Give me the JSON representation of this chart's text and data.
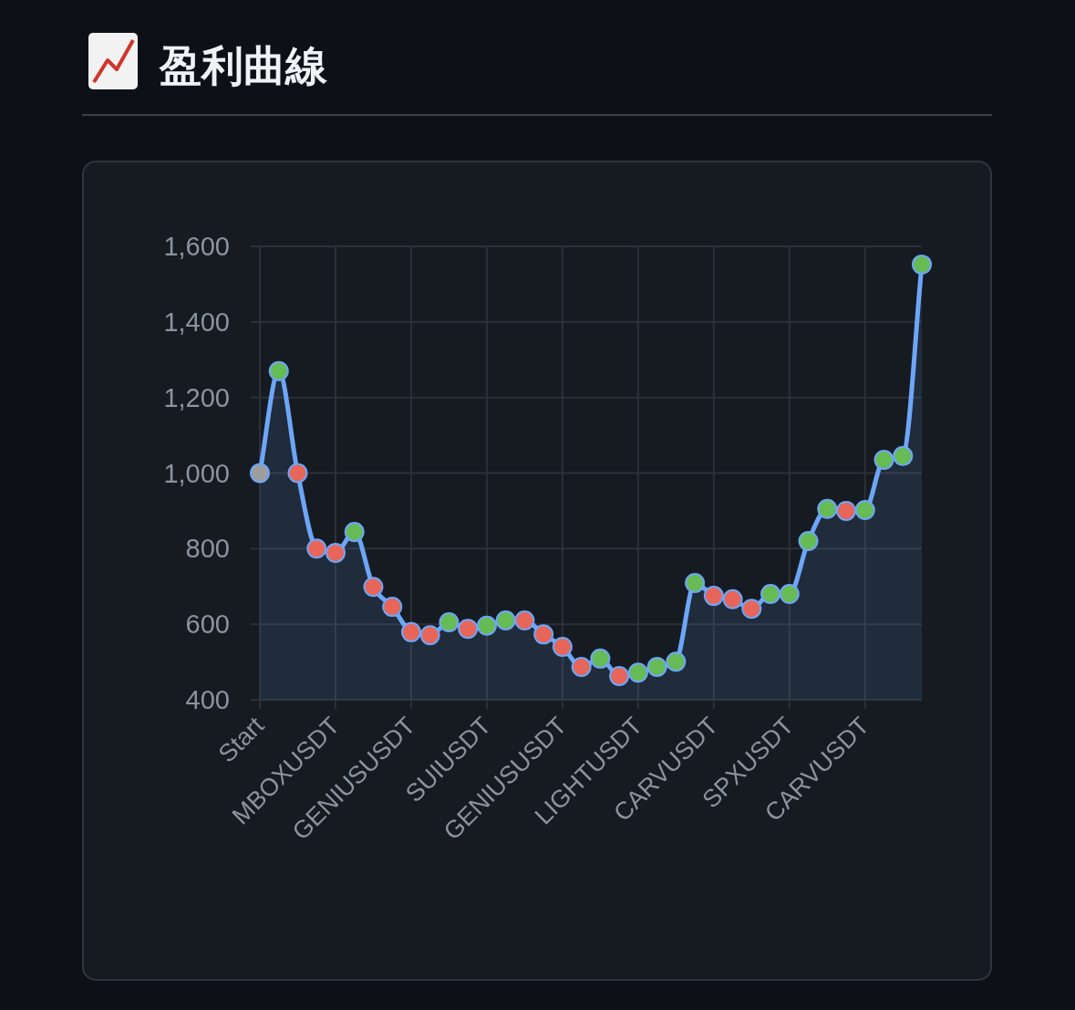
{
  "chart_data": {
    "type": "area",
    "title": "盈利曲線",
    "categories": [
      "Start",
      null,
      null,
      null,
      "MBOXUSDT",
      null,
      null,
      null,
      "GENIUSUSDT",
      null,
      null,
      null,
      "SUIUSDT",
      null,
      null,
      null,
      "GENIUSUSDT",
      null,
      null,
      null,
      "LIGHTUSDT",
      null,
      null,
      null,
      "CARVUSDT",
      null,
      null,
      null,
      "SPXUSDT",
      null,
      null,
      null,
      "CARVUSDT",
      null,
      null,
      null
    ],
    "series": [
      {
        "color": "#6ea6f7",
        "values": [
          1000,
          1270,
          1000,
          800,
          789,
          844,
          699,
          646,
          579,
          571,
          605,
          588,
          596,
          610,
          610,
          573,
          540,
          487,
          509,
          463,
          472,
          487,
          501,
          709,
          675,
          666,
          641,
          680,
          680,
          820,
          905,
          900,
          902,
          1035,
          1045,
          1552
        ],
        "colors": [
          "#9e9e9e",
          "#66bb55",
          "#e8655a",
          "#e8655a",
          "#e8655a",
          "#66bb55",
          "#e8655a",
          "#e8655a",
          "#e8655a",
          "#e8655a",
          "#66bb55",
          "#e8655a",
          "#66bb55",
          "#66bb55",
          "#e8655a",
          "#e8655a",
          "#e8655a",
          "#e8655a",
          "#66bb55",
          "#e8655a",
          "#66bb55",
          "#66bb55",
          "#66bb55",
          "#66bb55",
          "#e8655a",
          "#e8655a",
          "#e8655a",
          "#66bb55",
          "#66bb55",
          "#66bb55",
          "#66bb55",
          "#e8655a",
          "#66bb55",
          "#66bb55",
          "#66bb55",
          "#66bb55"
        ]
      }
    ],
    "ylim": [
      400,
      1600
    ],
    "yticks": [
      {
        "value": 400,
        "label": "400"
      },
      {
        "value": 600,
        "label": "600"
      },
      {
        "value": 800,
        "label": "800"
      },
      {
        "value": 1000,
        "label": "1,000"
      },
      {
        "value": 1200,
        "label": "1,200"
      },
      {
        "value": 1400,
        "label": "1,400"
      },
      {
        "value": 1600,
        "label": "1,600"
      }
    ],
    "grid": true,
    "marker": "circle"
  }
}
